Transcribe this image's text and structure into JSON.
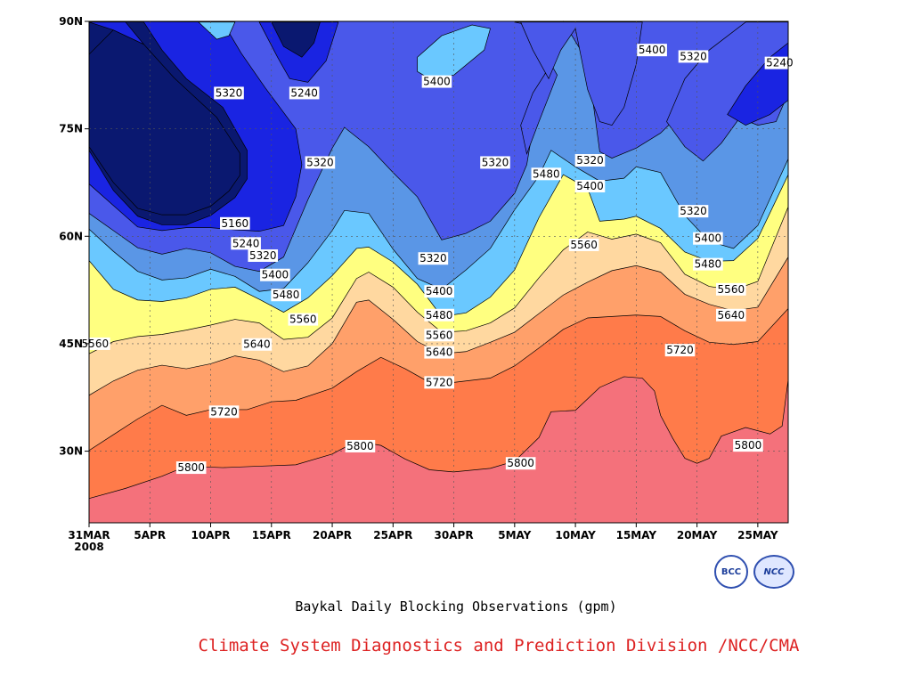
{
  "title": "Baykal Daily Blocking Observations (gpm)",
  "credit": "Climate System Diagnostics and Prediction Division /NCC/CMA",
  "credit_color": "#dd2222",
  "logos": {
    "bcc": "BCC",
    "ncc": "NCC"
  },
  "chart_data": {
    "type": "contour",
    "title": "Baykal Daily Blocking Observations (gpm)",
    "x_ticks": [
      "31MAR",
      "5APR",
      "10APR",
      "15APR",
      "20APR",
      "25APR",
      "30APR",
      "5MAY",
      "10MAY",
      "15MAY",
      "20MAY",
      "25MAY"
    ],
    "x_tick_days": [
      0,
      5,
      10,
      15,
      20,
      25,
      30,
      35,
      40,
      45,
      50,
      55
    ],
    "x_start_sublabel": "2008",
    "xlim_days": [
      0,
      57.5
    ],
    "y_ticks": [
      "30N",
      "45N",
      "60N",
      "75N",
      "90N"
    ],
    "y_tick_values": [
      30,
      45,
      60,
      75,
      90
    ],
    "ylim": [
      20,
      90
    ],
    "grid": true,
    "background_color": "#f4717b",
    "bands": [
      {
        "level": 5800,
        "color": "#f4717b",
        "upper": [
          [
            0,
            23.4
          ],
          [
            3,
            24.8
          ],
          [
            6,
            26.5
          ],
          [
            8,
            27.9
          ],
          [
            11,
            27.7
          ],
          [
            14,
            27.9
          ],
          [
            17,
            28.1
          ],
          [
            20,
            29.6
          ],
          [
            22,
            31.4
          ],
          [
            24,
            30.8
          ],
          [
            26,
            28.9
          ],
          [
            28,
            27.4
          ],
          [
            30,
            27.1
          ],
          [
            33,
            27.6
          ],
          [
            35,
            28.6
          ],
          [
            37,
            31.9
          ],
          [
            38,
            35.5
          ],
          [
            40,
            35.7
          ],
          [
            42,
            38.9
          ],
          [
            44,
            40.4
          ],
          [
            45.5,
            40.2
          ],
          [
            46.5,
            38.4
          ],
          [
            47,
            35
          ],
          [
            48,
            31.8
          ],
          [
            49,
            29
          ],
          [
            50,
            28.3
          ],
          [
            51,
            29
          ],
          [
            52,
            32.1
          ],
          [
            54,
            33.3
          ],
          [
            56,
            32.4
          ],
          [
            57,
            33.5
          ],
          [
            57.5,
            40
          ]
        ]
      },
      {
        "level": 5720,
        "color": "#ff7b4a",
        "upper": [
          [
            0,
            30.1
          ],
          [
            2,
            32.3
          ],
          [
            4,
            34.5
          ],
          [
            6,
            36.4
          ],
          [
            8,
            35
          ],
          [
            10,
            35.8
          ],
          [
            13,
            35.8
          ],
          [
            15,
            36.9
          ],
          [
            17,
            37.1
          ],
          [
            20,
            38.8
          ],
          [
            22,
            41.1
          ],
          [
            24,
            43.1
          ],
          [
            26,
            41.5
          ],
          [
            28,
            39.6
          ],
          [
            30,
            39.6
          ],
          [
            33,
            40.2
          ],
          [
            35,
            41.9
          ],
          [
            37,
            44.4
          ],
          [
            39,
            47
          ],
          [
            41,
            48.6
          ],
          [
            43,
            48.8
          ],
          [
            45,
            49
          ],
          [
            47,
            48.8
          ],
          [
            49,
            46.8
          ],
          [
            51,
            45.2
          ],
          [
            53,
            44.9
          ],
          [
            55,
            45.3
          ],
          [
            57.5,
            49.9
          ]
        ]
      },
      {
        "level": 5640,
        "color": "#ffa06a",
        "upper": [
          [
            0,
            37.8
          ],
          [
            2,
            39.8
          ],
          [
            4,
            41.3
          ],
          [
            6,
            42
          ],
          [
            8,
            41.5
          ],
          [
            10,
            42.2
          ],
          [
            12,
            43.3
          ],
          [
            14,
            42.7
          ],
          [
            16,
            41.1
          ],
          [
            18,
            41.9
          ],
          [
            20,
            45
          ],
          [
            22,
            50.8
          ],
          [
            23,
            51.1
          ],
          [
            25,
            48.4
          ],
          [
            27,
            45.3
          ],
          [
            29,
            43.6
          ],
          [
            31,
            43.9
          ],
          [
            33,
            45.2
          ],
          [
            35,
            46.6
          ],
          [
            37,
            49.2
          ],
          [
            39,
            51.8
          ],
          [
            41,
            53.6
          ],
          [
            43,
            55.2
          ],
          [
            45,
            55.9
          ],
          [
            47,
            55
          ],
          [
            49,
            51.9
          ],
          [
            51,
            50.5
          ],
          [
            53,
            49.6
          ],
          [
            55,
            50.1
          ],
          [
            57.5,
            57.1
          ]
        ]
      },
      {
        "level": 5560,
        "color": "#ffd8a0",
        "upper": [
          [
            0,
            43.6
          ],
          [
            2,
            45.3
          ],
          [
            4,
            46
          ],
          [
            6,
            46.3
          ],
          [
            8,
            46.9
          ],
          [
            10,
            47.6
          ],
          [
            12,
            48.4
          ],
          [
            14,
            47.9
          ],
          [
            16,
            45.6
          ],
          [
            18,
            45.9
          ],
          [
            20,
            48.6
          ],
          [
            22,
            54.1
          ],
          [
            23,
            55
          ],
          [
            25,
            52.9
          ],
          [
            27,
            49.4
          ],
          [
            29,
            46.6
          ],
          [
            31,
            46.8
          ],
          [
            33,
            47.9
          ],
          [
            35,
            50
          ],
          [
            37,
            54.2
          ],
          [
            39,
            58.1
          ],
          [
            41,
            60.6
          ],
          [
            43,
            59.6
          ],
          [
            45,
            60.3
          ],
          [
            47,
            59.1
          ],
          [
            49,
            54.7
          ],
          [
            51,
            53
          ],
          [
            53,
            52.5
          ],
          [
            55,
            53.7
          ],
          [
            57.5,
            64.1
          ]
        ]
      },
      {
        "level": 5480,
        "color": "#ffff80",
        "upper": [
          [
            0,
            56.6
          ],
          [
            2,
            52.6
          ],
          [
            4,
            51.1
          ],
          [
            6,
            50.9
          ],
          [
            8,
            51.4
          ],
          [
            10,
            52.6
          ],
          [
            12,
            52.9
          ],
          [
            14,
            51.2
          ],
          [
            16,
            49.4
          ],
          [
            18,
            51.4
          ],
          [
            20,
            54.5
          ],
          [
            22,
            58.3
          ],
          [
            23,
            58.5
          ],
          [
            25,
            56.4
          ],
          [
            27,
            53.3
          ],
          [
            29,
            48.8
          ],
          [
            31,
            49.3
          ],
          [
            33,
            51.5
          ],
          [
            35,
            55.3
          ],
          [
            37,
            62.6
          ],
          [
            39,
            68.6
          ],
          [
            41,
            66.7
          ],
          [
            42,
            62.1
          ],
          [
            44,
            62.4
          ],
          [
            45,
            62.8
          ],
          [
            47,
            61.1
          ],
          [
            49,
            57.8
          ],
          [
            51,
            56.5
          ],
          [
            53,
            56.6
          ],
          [
            55,
            59.7
          ],
          [
            57.5,
            68.6
          ]
        ]
      },
      {
        "level": 5400,
        "color": "#6ac8ff",
        "upper": [
          [
            0,
            61
          ],
          [
            2,
            57.9
          ],
          [
            4,
            55.1
          ],
          [
            6,
            53.9
          ],
          [
            8,
            54.2
          ],
          [
            10,
            55.4
          ],
          [
            12,
            54.4
          ],
          [
            14,
            52.3
          ],
          [
            16,
            52.7
          ],
          [
            18,
            56.3
          ],
          [
            20,
            60.8
          ],
          [
            21,
            63.6
          ],
          [
            23,
            63.2
          ],
          [
            25,
            58.2
          ],
          [
            27,
            54.1
          ],
          [
            29,
            52.6
          ],
          [
            31,
            55.3
          ],
          [
            33,
            58.3
          ],
          [
            35,
            63.7
          ],
          [
            37,
            68.4
          ],
          [
            38,
            72
          ],
          [
            40,
            69.7
          ],
          [
            42,
            67.7
          ],
          [
            44,
            68.1
          ],
          [
            45,
            69.7
          ],
          [
            47,
            68.9
          ],
          [
            49,
            62.9
          ],
          [
            51,
            59.3
          ],
          [
            53,
            58.3
          ],
          [
            55,
            61.5
          ],
          [
            57.5,
            70.8
          ]
        ]
      },
      {
        "level": 5320,
        "color": "#5a96e6",
        "upper": [
          [
            0,
            63.2
          ],
          [
            2,
            60.8
          ],
          [
            4,
            58.4
          ],
          [
            6,
            57.5
          ],
          [
            8,
            58.3
          ],
          [
            10,
            57.7
          ],
          [
            12,
            55.8
          ],
          [
            14,
            55.1
          ],
          [
            16,
            57.1
          ],
          [
            18,
            65.1
          ],
          [
            20,
            72.3
          ],
          [
            21,
            75.2
          ],
          [
            23,
            72.5
          ],
          [
            25,
            68.9
          ],
          [
            27,
            65.5
          ],
          [
            29,
            59.5
          ],
          [
            31,
            60.4
          ],
          [
            33,
            62.1
          ],
          [
            35,
            66
          ],
          [
            36,
            70
          ],
          [
            37,
            80.2
          ],
          [
            39,
            90
          ],
          [
            41,
            84.4
          ],
          [
            42,
            71.8
          ],
          [
            43,
            70.9
          ],
          [
            45,
            72.3
          ],
          [
            47,
            74.4
          ],
          [
            49,
            77.7
          ],
          [
            51,
            81.1
          ],
          [
            53,
            85.6
          ],
          [
            55,
            88.2
          ],
          [
            57.5,
            90
          ]
        ]
      },
      {
        "level": 5240,
        "color": "#4a58ea",
        "upper": [
          [
            0,
            67.3
          ],
          [
            2,
            64.3
          ],
          [
            4,
            61.3
          ],
          [
            6,
            60.8
          ],
          [
            8,
            61.2
          ],
          [
            10,
            61.2
          ],
          [
            12,
            60.9
          ],
          [
            14,
            60.7
          ],
          [
            16,
            61.5
          ],
          [
            17,
            65.5
          ],
          [
            17.5,
            70
          ],
          [
            17,
            75
          ],
          [
            14.5,
            80.7
          ],
          [
            12.5,
            85.6
          ],
          [
            11,
            89.9
          ]
        ]
      },
      {
        "level": 5160,
        "color": "#1a24e2",
        "upper": [
          [
            0,
            72
          ],
          [
            2,
            66.4
          ],
          [
            4,
            62.8
          ],
          [
            6,
            61.6
          ],
          [
            8,
            61.6
          ],
          [
            10,
            62.9
          ],
          [
            12,
            65.4
          ],
          [
            13,
            68
          ],
          [
            13,
            72
          ],
          [
            11,
            78
          ],
          [
            8,
            82
          ],
          [
            6,
            86
          ],
          [
            4.5,
            89.9
          ]
        ]
      },
      {
        "level": 5080,
        "color": "#0a1870",
        "upper": [
          [
            0,
            72.5
          ],
          [
            2,
            67.5
          ],
          [
            4,
            63.9
          ],
          [
            6,
            63
          ],
          [
            8,
            63
          ],
          [
            10,
            64.2
          ],
          [
            11.5,
            66.3
          ],
          [
            12.4,
            68.5
          ],
          [
            12.4,
            71.6
          ],
          [
            10.5,
            76.6
          ],
          [
            7,
            82.1
          ],
          [
            4.5,
            86.8
          ],
          [
            2,
            88.8
          ],
          [
            0,
            85.4
          ]
        ]
      }
    ],
    "contour_labels": [
      {
        "text": "5320",
        "x": 11.5,
        "y": 80
      },
      {
        "text": "5240",
        "x": 17.7,
        "y": 80
      },
      {
        "text": "5320",
        "x": 19,
        "y": 70.3
      },
      {
        "text": "5160",
        "x": 12,
        "y": 61.8
      },
      {
        "text": "5240",
        "x": 12.9,
        "y": 59
      },
      {
        "text": "5320",
        "x": 14.3,
        "y": 57.3
      },
      {
        "text": "5400",
        "x": 15.3,
        "y": 54.6
      },
      {
        "text": "5480",
        "x": 16.2,
        "y": 51.8
      },
      {
        "text": "5560",
        "x": 17.6,
        "y": 48.4
      },
      {
        "text": "5560",
        "x": 0.5,
        "y": 45
      },
      {
        "text": "5640",
        "x": 13.8,
        "y": 44.9
      },
      {
        "text": "5720",
        "x": 11.1,
        "y": 35.5
      },
      {
        "text": "5800",
        "x": 8.4,
        "y": 27.7
      },
      {
        "text": "5800",
        "x": 22.3,
        "y": 30.7
      },
      {
        "text": "5400",
        "x": 28.6,
        "y": 81.6
      },
      {
        "text": "5320",
        "x": 33.4,
        "y": 70.3
      },
      {
        "text": "5320",
        "x": 28.3,
        "y": 56.9
      },
      {
        "text": "5400",
        "x": 28.8,
        "y": 52.3
      },
      {
        "text": "5480",
        "x": 28.8,
        "y": 49
      },
      {
        "text": "5560",
        "x": 28.8,
        "y": 46.2
      },
      {
        "text": "5640",
        "x": 28.8,
        "y": 43.8
      },
      {
        "text": "5720",
        "x": 28.8,
        "y": 39.6
      },
      {
        "text": "5800",
        "x": 35.5,
        "y": 28.3
      },
      {
        "text": "5480",
        "x": 37.6,
        "y": 68.7
      },
      {
        "text": "5320",
        "x": 41.2,
        "y": 70.6
      },
      {
        "text": "5400",
        "x": 41.2,
        "y": 67
      },
      {
        "text": "5560",
        "x": 40.7,
        "y": 58.8
      },
      {
        "text": "5400",
        "x": 46.3,
        "y": 86
      },
      {
        "text": "5320",
        "x": 49.7,
        "y": 85.1
      },
      {
        "text": "5240",
        "x": 56.8,
        "y": 84.2
      },
      {
        "text": "5320",
        "x": 49.7,
        "y": 63.5
      },
      {
        "text": "5400",
        "x": 50.9,
        "y": 59.7
      },
      {
        "text": "5480",
        "x": 50.9,
        "y": 56.1
      },
      {
        "text": "5560",
        "x": 52.8,
        "y": 52.6
      },
      {
        "text": "5640",
        "x": 52.8,
        "y": 49
      },
      {
        "text": "5720",
        "x": 48.6,
        "y": 44.1
      },
      {
        "text": "5800",
        "x": 54.2,
        "y": 30.8
      }
    ]
  }
}
